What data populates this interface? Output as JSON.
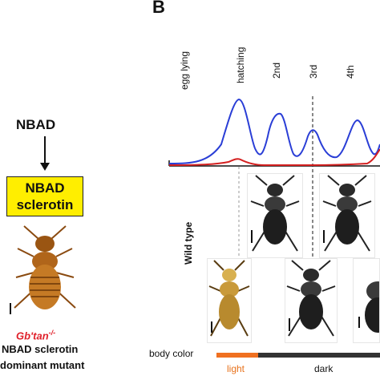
{
  "panel_b": {
    "letter": "B",
    "stages": [
      "egg lying",
      "hatching",
      "2nd",
      "3rd",
      "4th"
    ],
    "row_label": "Wild type",
    "body_color": {
      "label": "body color",
      "light": "light",
      "dark": "dark"
    },
    "line_colors": {
      "blue": "#2a3ed6",
      "red": "#d42020"
    }
  },
  "panel_a": {
    "pathway_top": "NBAD",
    "box_line1": "NBAD",
    "box_line2": "sclerotin",
    "mutant_genotype": "Gb'tan",
    "mutant_genotype_sup": "-/-",
    "description_line1": "NBAD sclerotin",
    "description_line2": "dominant mutant"
  }
}
